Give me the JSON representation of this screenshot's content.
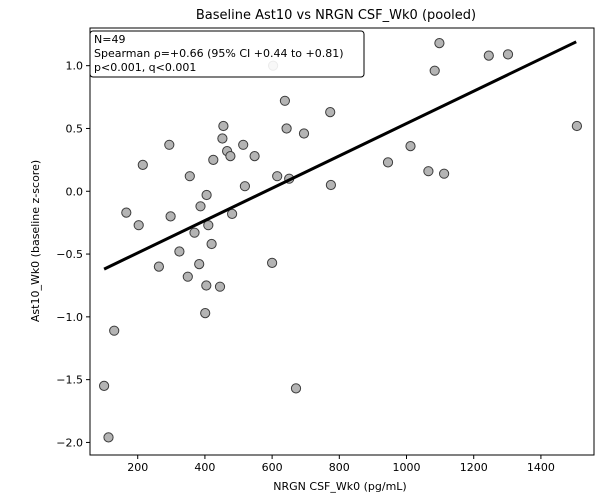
{
  "chart_data": {
    "type": "scatter",
    "title": "Baseline Ast10 vs NRGN CSF_Wk0 (pooled)",
    "xlabel": "NRGN CSF_Wk0 (pg/mL)",
    "ylabel": "Ast10_Wk0 (baseline z-score)",
    "xlim": [
      58,
      1558
    ],
    "ylim": [
      -2.1,
      1.3
    ],
    "xticks": [
      200,
      400,
      600,
      800,
      1000,
      1200,
      1400
    ],
    "yticks": [
      -2.0,
      -1.5,
      -1.0,
      -0.5,
      0.0,
      0.5,
      1.0
    ],
    "xtick_labels": [
      "200",
      "400",
      "600",
      "800",
      "1000",
      "1200",
      "1400"
    ],
    "ytick_labels": [
      "−2.0",
      "−1.5",
      "−1.0",
      "−0.5",
      "0.0",
      "0.5",
      "1.0"
    ],
    "grid": false,
    "annotation": {
      "lines": [
        "N=49",
        "Spearman ρ=+0.66 (95% CI +0.44 to +0.81)",
        "p<0.001, q<0.001"
      ],
      "placement": "top-left"
    },
    "marker_fill": "#b4b4b4",
    "marker_edge": "#3c3c3c",
    "line_color": "#000000",
    "fit_line": {
      "x": [
        100,
        1505
      ],
      "y": [
        -0.62,
        1.19
      ]
    },
    "points": [
      {
        "x": 100,
        "y": -1.55
      },
      {
        "x": 113,
        "y": -1.96
      },
      {
        "x": 130,
        "y": -1.11
      },
      {
        "x": 166,
        "y": -0.17
      },
      {
        "x": 203,
        "y": -0.27
      },
      {
        "x": 215,
        "y": 0.21
      },
      {
        "x": 263,
        "y": -0.6
      },
      {
        "x": 294,
        "y": 0.37
      },
      {
        "x": 298,
        "y": -0.2
      },
      {
        "x": 324,
        "y": -0.48
      },
      {
        "x": 349,
        "y": -0.68
      },
      {
        "x": 355,
        "y": 0.12
      },
      {
        "x": 369,
        "y": -0.33
      },
      {
        "x": 383,
        "y": -0.58
      },
      {
        "x": 387,
        "y": -0.12
      },
      {
        "x": 401,
        "y": -0.97
      },
      {
        "x": 404,
        "y": -0.75
      },
      {
        "x": 405,
        "y": -0.03
      },
      {
        "x": 410,
        "y": -0.27
      },
      {
        "x": 420,
        "y": -0.42
      },
      {
        "x": 425,
        "y": 0.25
      },
      {
        "x": 445,
        "y": -0.76
      },
      {
        "x": 452,
        "y": 0.42
      },
      {
        "x": 455,
        "y": 0.52
      },
      {
        "x": 466,
        "y": 0.32
      },
      {
        "x": 476,
        "y": 0.28
      },
      {
        "x": 481,
        "y": -0.18
      },
      {
        "x": 514,
        "y": 0.37
      },
      {
        "x": 519,
        "y": 0.04
      },
      {
        "x": 548,
        "y": 0.28
      },
      {
        "x": 600,
        "y": -0.57
      },
      {
        "x": 603,
        "y": 1.0
      },
      {
        "x": 615,
        "y": 0.12
      },
      {
        "x": 638,
        "y": 0.72
      },
      {
        "x": 643,
        "y": 0.5
      },
      {
        "x": 651,
        "y": 0.1
      },
      {
        "x": 671,
        "y": -1.57
      },
      {
        "x": 695,
        "y": 0.46
      },
      {
        "x": 773,
        "y": 0.63
      },
      {
        "x": 775,
        "y": 0.05
      },
      {
        "x": 945,
        "y": 0.23
      },
      {
        "x": 1012,
        "y": 0.36
      },
      {
        "x": 1065,
        "y": 0.16
      },
      {
        "x": 1084,
        "y": 0.96
      },
      {
        "x": 1098,
        "y": 1.18
      },
      {
        "x": 1112,
        "y": 0.14
      },
      {
        "x": 1245,
        "y": 1.08
      },
      {
        "x": 1302,
        "y": 1.09
      },
      {
        "x": 1507,
        "y": 0.52
      }
    ]
  }
}
